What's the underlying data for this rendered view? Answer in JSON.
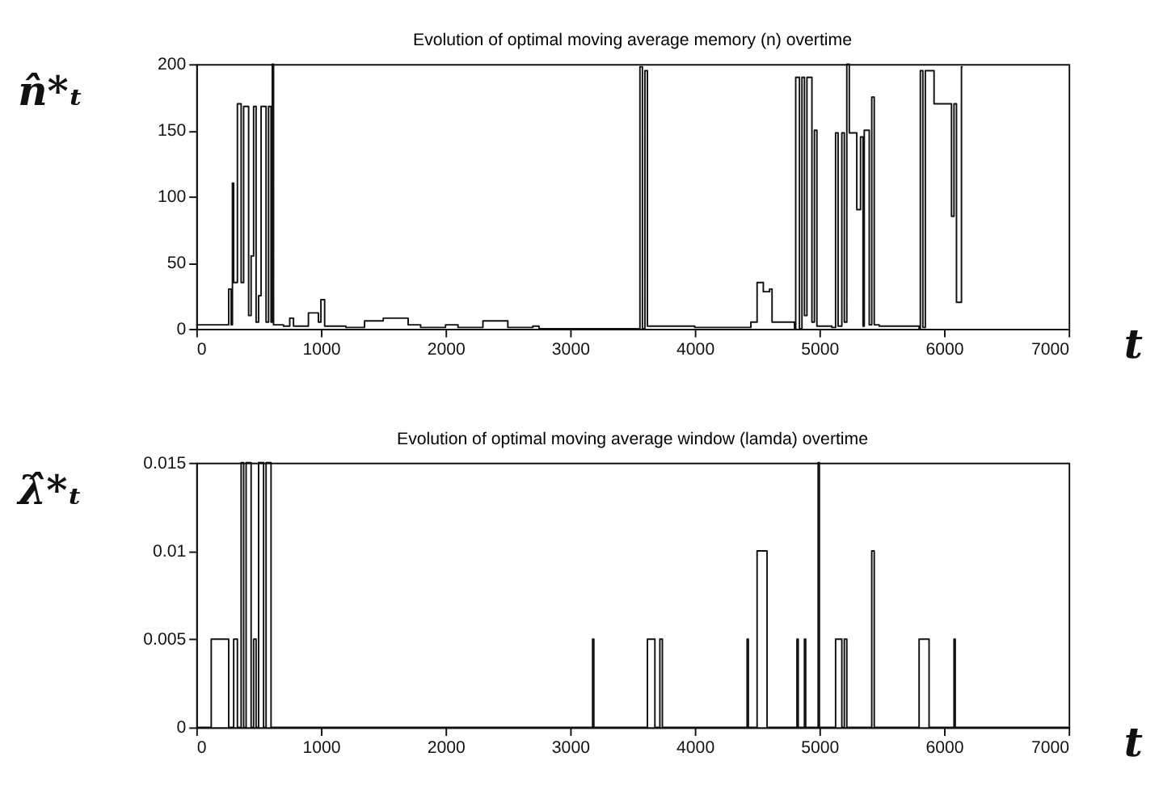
{
  "chart_data": [
    {
      "type": "step",
      "title": "Evolution of optimal moving average memory (n) overtime",
      "xlabel": "t",
      "ylabel": "n̂*ₜ",
      "xlim": [
        0,
        7000
      ],
      "xticks": [
        0,
        1000,
        2000,
        3000,
        4000,
        5000,
        6000,
        7000
      ],
      "ylim": [
        0,
        200
      ],
      "yticks": [
        0,
        50,
        100,
        150,
        200
      ],
      "grid": false,
      "series": [
        {
          "color": "#111111",
          "x": [
            0,
            250,
            260,
            280,
            290,
            300,
            330,
            360,
            380,
            420,
            440,
            460,
            480,
            500,
            520,
            560,
            580,
            600,
            610,
            620,
            700,
            750,
            780,
            900,
            980,
            1000,
            1030,
            1200,
            1350,
            1500,
            1700,
            1800,
            2000,
            2100,
            2300,
            2500,
            2700,
            2750,
            3550,
            3560,
            3580,
            3600,
            3620,
            3800,
            4000,
            4400,
            4450,
            4500,
            4550,
            4600,
            4620,
            4800,
            4810,
            4840,
            4860,
            4880,
            4900,
            4940,
            4960,
            4980,
            5100,
            5130,
            5150,
            5180,
            5200,
            5220,
            5240,
            5300,
            5330,
            5350,
            5360,
            5400,
            5420,
            5440,
            5480,
            5800,
            5810,
            5830,
            5850,
            5920,
            6060,
            6080,
            6100,
            6140,
            6150
          ],
          "values": [
            3,
            3,
            30,
            3,
            110,
            35,
            170,
            35,
            168,
            10,
            55,
            168,
            5,
            25,
            168,
            5,
            168,
            5,
            200,
            3,
            2,
            8,
            2,
            12,
            5,
            22,
            2,
            1,
            6,
            8,
            3,
            1,
            3,
            1,
            6,
            1,
            2,
            0,
            0,
            198,
            0,
            195,
            2,
            2,
            1,
            1,
            5,
            35,
            28,
            30,
            5,
            0,
            190,
            0,
            190,
            10,
            190,
            5,
            150,
            2,
            1,
            148,
            2,
            148,
            5,
            200,
            148,
            90,
            145,
            2,
            150,
            3,
            175,
            3,
            2,
            0,
            195,
            1,
            195,
            170,
            85,
            170,
            20,
            198,
            198
          ]
        }
      ]
    },
    {
      "type": "step",
      "title": "Evolution of optimal moving average window (lamda) overtime",
      "xlabel": "t",
      "ylabel": "λ̂*ₜ",
      "xlim": [
        0,
        7000
      ],
      "xticks": [
        0,
        1000,
        2000,
        3000,
        4000,
        5000,
        6000,
        7000
      ],
      "ylim": [
        0,
        0.015
      ],
      "yticks": [
        0,
        0.005,
        0.01,
        0.015
      ],
      "grid": false,
      "series": [
        {
          "color": "#111111",
          "x": [
            0,
            120,
            260,
            300,
            330,
            360,
            380,
            400,
            440,
            460,
            480,
            500,
            540,
            560,
            600,
            3180,
            3190,
            3620,
            3680,
            3720,
            3740,
            4420,
            4430,
            4500,
            4580,
            4820,
            4830,
            4880,
            4890,
            4990,
            5000,
            5130,
            5180,
            5200,
            5220,
            5420,
            5440,
            5800,
            5880,
            6080,
            6090,
            7000
          ],
          "values": [
            0,
            0.005,
            0,
            0.005,
            0,
            0.015,
            0,
            0.015,
            0,
            0.005,
            0,
            0.015,
            0,
            0.015,
            0,
            0.005,
            0,
            0.005,
            0,
            0.005,
            0,
            0.005,
            0,
            0.01,
            0,
            0.005,
            0,
            0.005,
            0,
            0.015,
            0,
            0.005,
            0,
            0.005,
            0,
            0.01,
            0,
            0.005,
            0,
            0.005,
            0,
            0
          ]
        }
      ]
    }
  ]
}
